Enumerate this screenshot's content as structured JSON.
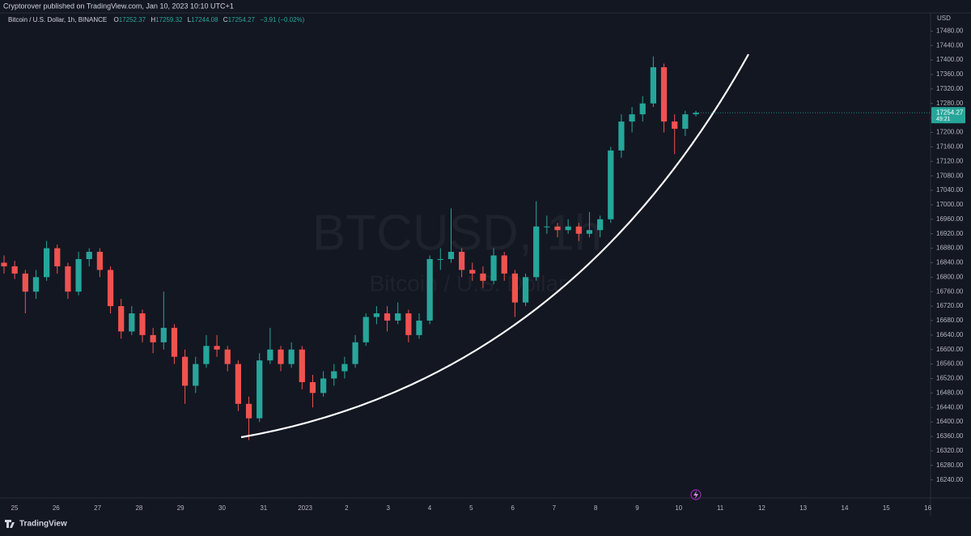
{
  "header": {
    "published": "Cryptorover published on TradingView.com, Jan 10, 2023 10:10 UTC+1"
  },
  "legend": {
    "symbol": "Bitcoin / U.S. Dollar, 1h, BINANCE",
    "o_label": "O",
    "o": "17252.37",
    "h_label": "H",
    "h": "17259.32",
    "l_label": "L",
    "l": "17244.08",
    "c_label": "C",
    "c": "17254.27",
    "change": "−3.91 (−0.02%)"
  },
  "watermark": {
    "ticker": "BTCUSD, 1h",
    "name": "Bitcoin / U.S. Dollar"
  },
  "footer": {
    "brand": "TradingView"
  },
  "chart_data": {
    "type": "candlestick",
    "y_unit": "USD",
    "ylim": [
      16190,
      17530
    ],
    "grid": false,
    "up_color": "#26a69a",
    "down_color": "#ef5350",
    "x_labels": [
      "25",
      "26",
      "27",
      "28",
      "29",
      "30",
      "31",
      "2023",
      "2",
      "3",
      "4",
      "5",
      "6",
      "7",
      "8",
      "9",
      "10",
      "11",
      "12",
      "13",
      "14",
      "15",
      "16"
    ],
    "yticks": [
      {
        "value": 17480,
        "label": "17480.00"
      },
      {
        "value": 17440,
        "label": "17440.00"
      },
      {
        "value": 17400,
        "label": "17400.00"
      },
      {
        "value": 17360,
        "label": "17360.00"
      },
      {
        "value": 17320,
        "label": "17320.00"
      },
      {
        "value": 17280,
        "label": "17280.00"
      },
      {
        "value": 17240,
        "label": "17240.00"
      },
      {
        "value": 17200,
        "label": "17200.00"
      },
      {
        "value": 17160,
        "label": "17160.00"
      },
      {
        "value": 17120,
        "label": "17120.00"
      },
      {
        "value": 17080,
        "label": "17080.00"
      },
      {
        "value": 17040,
        "label": "17040.00"
      },
      {
        "value": 17000,
        "label": "17000.00"
      },
      {
        "value": 16960,
        "label": "16960.00"
      },
      {
        "value": 16920,
        "label": "16920.00"
      },
      {
        "value": 16880,
        "label": "16880.00"
      },
      {
        "value": 16840,
        "label": "16840.00"
      },
      {
        "value": 16800,
        "label": "16800.00"
      },
      {
        "value": 16760,
        "label": "16760.00"
      },
      {
        "value": 16720,
        "label": "16720.00"
      },
      {
        "value": 16680,
        "label": "16680.00"
      },
      {
        "value": 16640,
        "label": "16640.00"
      },
      {
        "value": 16600,
        "label": "16600.00"
      },
      {
        "value": 16560,
        "label": "16560.00"
      },
      {
        "value": 16520,
        "label": "16520.00"
      },
      {
        "value": 16480,
        "label": "16480.00"
      },
      {
        "value": 16440,
        "label": "16440.00"
      },
      {
        "value": 16400,
        "label": "16400.00"
      },
      {
        "value": 16360,
        "label": "16360.00"
      },
      {
        "value": 16320,
        "label": "16320.00"
      },
      {
        "value": 16280,
        "label": "16280.00"
      },
      {
        "value": 16240,
        "label": "16240.00"
      }
    ],
    "last_price": {
      "value": 17254.27,
      "label": "17254.27"
    },
    "countdown": "49:21",
    "ohlc": [
      [
        16840,
        16860,
        16810,
        16830
      ],
      [
        16830,
        16845,
        16795,
        16810
      ],
      [
        16810,
        16820,
        16700,
        16760
      ],
      [
        16760,
        16820,
        16740,
        16800
      ],
      [
        16800,
        16900,
        16790,
        16880
      ],
      [
        16880,
        16890,
        16810,
        16830
      ],
      [
        16830,
        16840,
        16740,
        16760
      ],
      [
        16760,
        16870,
        16750,
        16850
      ],
      [
        16850,
        16880,
        16830,
        16870
      ],
      [
        16870,
        16880,
        16800,
        16820
      ],
      [
        16820,
        16830,
        16700,
        16720
      ],
      [
        16720,
        16740,
        16630,
        16650
      ],
      [
        16650,
        16720,
        16640,
        16700
      ],
      [
        16700,
        16710,
        16620,
        16640
      ],
      [
        16640,
        16660,
        16590,
        16620
      ],
      [
        16620,
        16760,
        16600,
        16660
      ],
      [
        16660,
        16670,
        16560,
        16580
      ],
      [
        16580,
        16600,
        16450,
        16500
      ],
      [
        16500,
        16580,
        16480,
        16560
      ],
      [
        16560,
        16640,
        16550,
        16610
      ],
      [
        16610,
        16640,
        16580,
        16600
      ],
      [
        16600,
        16610,
        16540,
        16560
      ],
      [
        16560,
        16570,
        16430,
        16450
      ],
      [
        16450,
        16470,
        16350,
        16410
      ],
      [
        16410,
        16590,
        16400,
        16570
      ],
      [
        16570,
        16660,
        16560,
        16600
      ],
      [
        16600,
        16610,
        16540,
        16560
      ],
      [
        16560,
        16620,
        16550,
        16600
      ],
      [
        16600,
        16610,
        16490,
        16510
      ],
      [
        16510,
        16530,
        16440,
        16480
      ],
      [
        16480,
        16540,
        16470,
        16520
      ],
      [
        16520,
        16560,
        16500,
        16540
      ],
      [
        16540,
        16580,
        16520,
        16560
      ],
      [
        16560,
        16640,
        16550,
        16620
      ],
      [
        16620,
        16700,
        16610,
        16690
      ],
      [
        16690,
        16720,
        16670,
        16700
      ],
      [
        16700,
        16720,
        16650,
        16680
      ],
      [
        16680,
        16730,
        16670,
        16700
      ],
      [
        16700,
        16710,
        16620,
        16640
      ],
      [
        16640,
        16700,
        16630,
        16680
      ],
      [
        16680,
        16860,
        16670,
        16850
      ],
      [
        16850,
        16880,
        16820,
        16850
      ],
      [
        16850,
        16990,
        16840,
        16870
      ],
      [
        16870,
        16880,
        16800,
        16820
      ],
      [
        16820,
        16840,
        16790,
        16810
      ],
      [
        16810,
        16830,
        16770,
        16790
      ],
      [
        16790,
        16880,
        16780,
        16860
      ],
      [
        16860,
        16870,
        16790,
        16810
      ],
      [
        16810,
        16820,
        16690,
        16730
      ],
      [
        16730,
        16810,
        16720,
        16800
      ],
      [
        16800,
        17010,
        16790,
        16940
      ],
      [
        16940,
        16970,
        16920,
        16940
      ],
      [
        16940,
        16950,
        16910,
        16930
      ],
      [
        16930,
        16960,
        16920,
        16940
      ],
      [
        16940,
        16950,
        16900,
        16920
      ],
      [
        16920,
        16980,
        16910,
        16930
      ],
      [
        16930,
        16970,
        16910,
        16960
      ],
      [
        16960,
        17160,
        16950,
        17150
      ],
      [
        17150,
        17250,
        17130,
        17230
      ],
      [
        17230,
        17270,
        17200,
        17250
      ],
      [
        17250,
        17300,
        17230,
        17280
      ],
      [
        17280,
        17410,
        17270,
        17380
      ],
      [
        17380,
        17390,
        17200,
        17230
      ],
      [
        17230,
        17250,
        17140,
        17210
      ],
      [
        17210,
        17260,
        17190,
        17250
      ],
      [
        17250,
        17259.32,
        17244.08,
        17254.27
      ]
    ]
  }
}
